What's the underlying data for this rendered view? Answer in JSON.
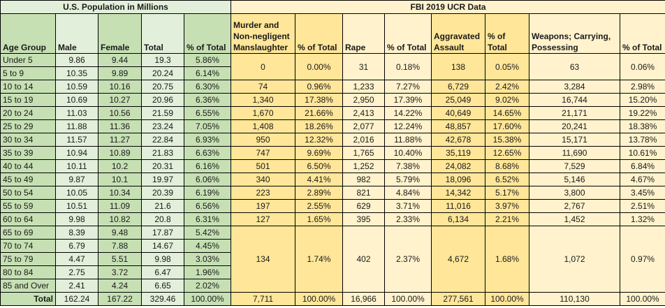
{
  "population": {
    "title": "U.S. Population in Millions",
    "headers": [
      "Age Group",
      "Male",
      "Female",
      "Total",
      "% of Total"
    ],
    "rows": [
      [
        "Under 5",
        "9.86",
        "9.44",
        "19.3",
        "5.86%"
      ],
      [
        "5 to 9",
        "10.35",
        "9.89",
        "20.24",
        "6.14%"
      ],
      [
        "10 to 14",
        "10.59",
        "10.16",
        "20.75",
        "6.30%"
      ],
      [
        "15 to 19",
        "10.69",
        "10.27",
        "20.96",
        "6.36%"
      ],
      [
        "20 to 24",
        "11.03",
        "10.56",
        "21.59",
        "6.55%"
      ],
      [
        "25 to 29",
        "11.88",
        "11.36",
        "23.24",
        "7.05%"
      ],
      [
        "30 to 34",
        "11.57",
        "11.27",
        "22.84",
        "6.93%"
      ],
      [
        "35 to 39",
        "10.94",
        "10.89",
        "21.83",
        "6.63%"
      ],
      [
        "40 to 44",
        "10.11",
        "10.2",
        "20.31",
        "6.16%"
      ],
      [
        "45 to 49",
        "9.87",
        "10.1",
        "19.97",
        "6.06%"
      ],
      [
        "50 to 54",
        "10.05",
        "10.34",
        "20.39",
        "6.19%"
      ],
      [
        "55 to 59",
        "10.51",
        "11.09",
        "21.6",
        "6.56%"
      ],
      [
        "60 to 64",
        "9.98",
        "10.82",
        "20.8",
        "6.31%"
      ],
      [
        "65 to 69",
        "8.39",
        "9.48",
        "17.87",
        "5.42%"
      ],
      [
        "70 to 74",
        "6.79",
        "7.88",
        "14.67",
        "4.45%"
      ],
      [
        "75 to 79",
        "4.47",
        "5.51",
        "9.98",
        "3.03%"
      ],
      [
        "80 to 84",
        "2.75",
        "3.72",
        "6.47",
        "1.96%"
      ],
      [
        "85 and Over",
        "2.41",
        "4.24",
        "6.65",
        "2.02%"
      ]
    ],
    "total": [
      "Total",
      "162.24",
      "167.22",
      "329.46",
      "100.00%"
    ]
  },
  "fbi": {
    "title": "FBI 2019 UCR Data",
    "headers": [
      "Murder and Non-negligent Manslaughter",
      "% of Total",
      "Rape",
      "% of Total",
      "Aggravated Assault",
      "% of Total",
      "Weapons; Carrying, Possessing",
      "% of Total"
    ],
    "groups": [
      {
        "span": 2,
        "values": [
          "0",
          "0.00%",
          "31",
          "0.18%",
          "138",
          "0.05%",
          "63",
          "0.06%"
        ]
      },
      {
        "span": 1,
        "values": [
          "74",
          "0.96%",
          "1,233",
          "7.27%",
          "6,729",
          "2.42%",
          "3,284",
          "2.98%"
        ]
      },
      {
        "span": 1,
        "values": [
          "1,340",
          "17.38%",
          "2,950",
          "17.39%",
          "25,049",
          "9.02%",
          "16,744",
          "15.20%"
        ]
      },
      {
        "span": 1,
        "values": [
          "1,670",
          "21.66%",
          "2,413",
          "14.22%",
          "40,649",
          "14.65%",
          "21,171",
          "19.22%"
        ]
      },
      {
        "span": 1,
        "values": [
          "1,408",
          "18.26%",
          "2,077",
          "12.24%",
          "48,857",
          "17.60%",
          "20,241",
          "18.38%"
        ]
      },
      {
        "span": 1,
        "values": [
          "950",
          "12.32%",
          "2,016",
          "11.88%",
          "42,678",
          "15.38%",
          "15,171",
          "13.78%"
        ]
      },
      {
        "span": 1,
        "values": [
          "747",
          "9.69%",
          "1,765",
          "10.40%",
          "35,119",
          "12.65%",
          "11,690",
          "10.61%"
        ]
      },
      {
        "span": 1,
        "values": [
          "501",
          "6.50%",
          "1,252",
          "7.38%",
          "24,082",
          "8.68%",
          "7,529",
          "6.84%"
        ]
      },
      {
        "span": 1,
        "values": [
          "340",
          "4.41%",
          "982",
          "5.79%",
          "18,096",
          "6.52%",
          "5,146",
          "4.67%"
        ]
      },
      {
        "span": 1,
        "values": [
          "223",
          "2.89%",
          "821",
          "4.84%",
          "14,342",
          "5.17%",
          "3,800",
          "3.45%"
        ]
      },
      {
        "span": 1,
        "values": [
          "197",
          "2.55%",
          "629",
          "3.71%",
          "11,016",
          "3.97%",
          "2,767",
          "2.51%"
        ]
      },
      {
        "span": 1,
        "values": [
          "127",
          "1.65%",
          "395",
          "2.33%",
          "6,134",
          "2.21%",
          "1,452",
          "1.32%"
        ]
      },
      {
        "span": 5,
        "values": [
          "134",
          "1.74%",
          "402",
          "2.37%",
          "4,672",
          "1.68%",
          "1,072",
          "0.97%"
        ]
      }
    ],
    "total": [
      "7,711",
      "100.00%",
      "16,966",
      "100.00%",
      "277,561",
      "100.00%",
      "110,130",
      "100.00%"
    ]
  },
  "colors": {
    "green_light": "#e2efda",
    "green_dark": "#c6e0b4",
    "orange_light": "#fff2cc",
    "orange_dark": "#ffe699"
  }
}
